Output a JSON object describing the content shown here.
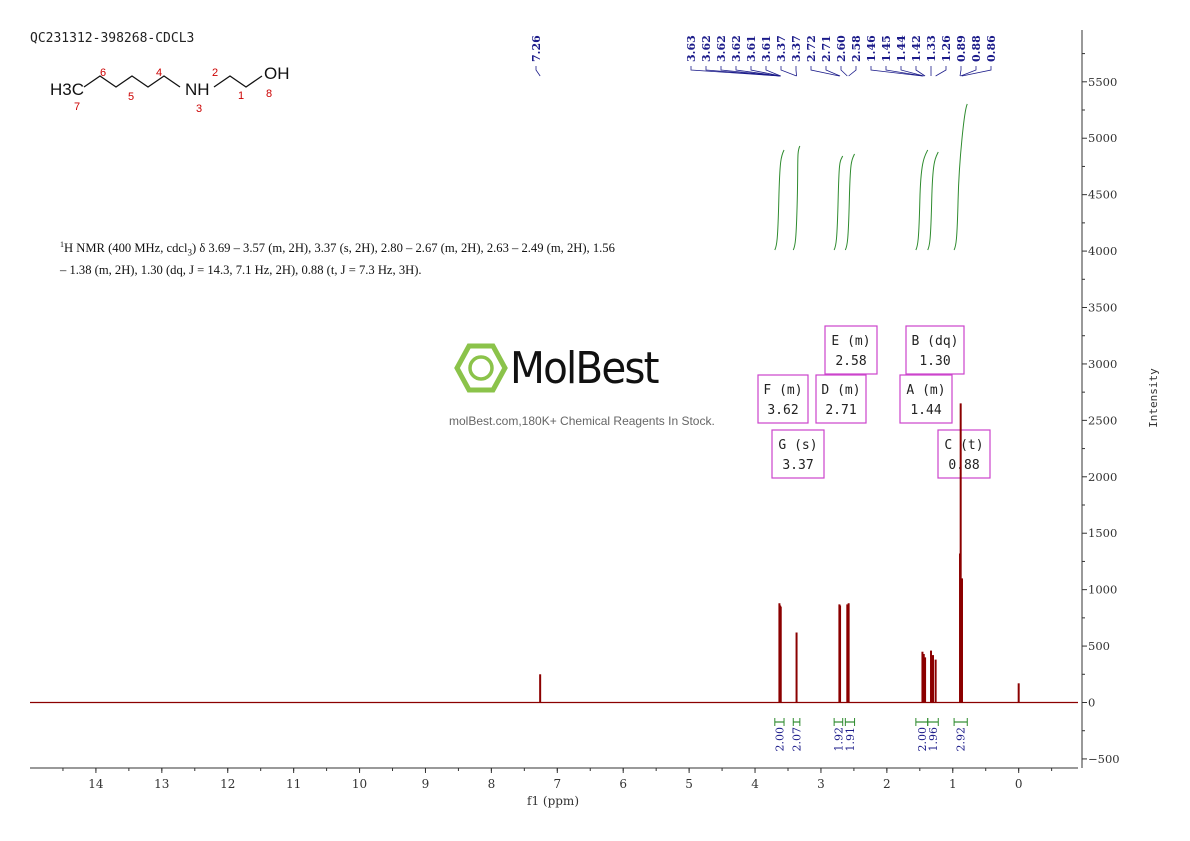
{
  "sample_id": "QC231312-398268-CDCL3",
  "nmr_description": {
    "prefix": "H NMR (400 MHz, cdcl",
    "sub": "3",
    "rest": ") δ 3.69 – 3.57 (m, 2H), 3.37 (s, 2H), 2.80 – 2.67 (m, 2H), 2.63 – 2.49 (m, 2H), 1.56 – 1.38 (m, 2H), 1.30 (dq, J = 14.3, 7.1 Hz, 2H), 0.88 (t, J = 7.3 Hz, 3H)."
  },
  "logo": {
    "name": "MolBest",
    "tagline": "molBest.com,180K+ Chemical Reagents In Stock."
  },
  "molecule": {
    "groups": {
      "ch3": "H3C",
      "nh": "NH",
      "oh": "OH"
    },
    "atom_numbers": [
      "7",
      "6",
      "5",
      "4",
      "3",
      "2",
      "1",
      "8"
    ]
  },
  "colors": {
    "spectrum": "#8b0000",
    "integral": "#2e8b2e",
    "peak_label": "#1c1c8a",
    "multiplet_box": "#cc44cc",
    "atom_number": "#cc0000",
    "axis": "#333333"
  },
  "chart_data": {
    "type": "line",
    "xlabel": "f1 (ppm)",
    "ylabel": "Intensity",
    "xlim": [
      15.0,
      -0.9
    ],
    "ylim": [
      -500,
      5900
    ],
    "x_ticks": [
      14,
      13,
      12,
      11,
      10,
      9,
      8,
      7,
      6,
      5,
      4,
      3,
      2,
      1,
      0
    ],
    "y_ticks": [
      -500,
      0,
      500,
      1000,
      1500,
      2000,
      2500,
      3000,
      3500,
      4000,
      4500,
      5000,
      5500
    ],
    "peaks": [
      {
        "ppm": 7.26,
        "intensity": 250
      },
      {
        "ppm": 3.63,
        "intensity": 880
      },
      {
        "ppm": 3.62,
        "intensity": 860
      },
      {
        "ppm": 3.61,
        "intensity": 850
      },
      {
        "ppm": 3.37,
        "intensity": 620
      },
      {
        "ppm": 2.72,
        "intensity": 870
      },
      {
        "ppm": 2.71,
        "intensity": 860
      },
      {
        "ppm": 2.6,
        "intensity": 870
      },
      {
        "ppm": 2.58,
        "intensity": 880
      },
      {
        "ppm": 1.46,
        "intensity": 450
      },
      {
        "ppm": 1.44,
        "intensity": 430
      },
      {
        "ppm": 1.42,
        "intensity": 400
      },
      {
        "ppm": 1.33,
        "intensity": 460
      },
      {
        "ppm": 1.3,
        "intensity": 420
      },
      {
        "ppm": 1.26,
        "intensity": 380
      },
      {
        "ppm": 0.89,
        "intensity": 1320
      },
      {
        "ppm": 0.88,
        "intensity": 2650
      },
      {
        "ppm": 0.86,
        "intensity": 1100
      },
      {
        "ppm": 0.0,
        "intensity": 170
      }
    ],
    "peak_labels": [
      "7.26",
      "3.63",
      "3.62",
      "3.62",
      "3.62",
      "3.61",
      "3.61",
      "3.37",
      "3.37",
      "2.72",
      "2.71",
      "2.60",
      "2.58",
      "1.46",
      "1.45",
      "1.44",
      "1.42",
      "1.33",
      "1.26",
      "0.89",
      "0.88",
      "0.86"
    ],
    "multiplets": [
      {
        "letter": "F",
        "mult": "(m)",
        "shift": "3.62"
      },
      {
        "letter": "G",
        "mult": "(s)",
        "shift": "3.37"
      },
      {
        "letter": "D",
        "mult": "(m)",
        "shift": "2.71"
      },
      {
        "letter": "E",
        "mult": "(m)",
        "shift": "2.58"
      },
      {
        "letter": "A",
        "mult": "(m)",
        "shift": "1.44"
      },
      {
        "letter": "B",
        "mult": "(dq)",
        "shift": "1.30"
      },
      {
        "letter": "C",
        "mult": "(t)",
        "shift": "0.88"
      }
    ],
    "integrals": [
      {
        "from": 3.7,
        "to": 3.56,
        "value": "2.00"
      },
      {
        "from": 3.42,
        "to": 3.32,
        "value": "2.07"
      },
      {
        "from": 2.8,
        "to": 2.67,
        "value": "1.92"
      },
      {
        "from": 2.63,
        "to": 2.49,
        "value": "1.91"
      },
      {
        "from": 1.56,
        "to": 1.38,
        "value": "2.00"
      },
      {
        "from": 1.38,
        "to": 1.22,
        "value": "1.96"
      },
      {
        "from": 0.98,
        "to": 0.78,
        "value": "2.92"
      }
    ]
  }
}
